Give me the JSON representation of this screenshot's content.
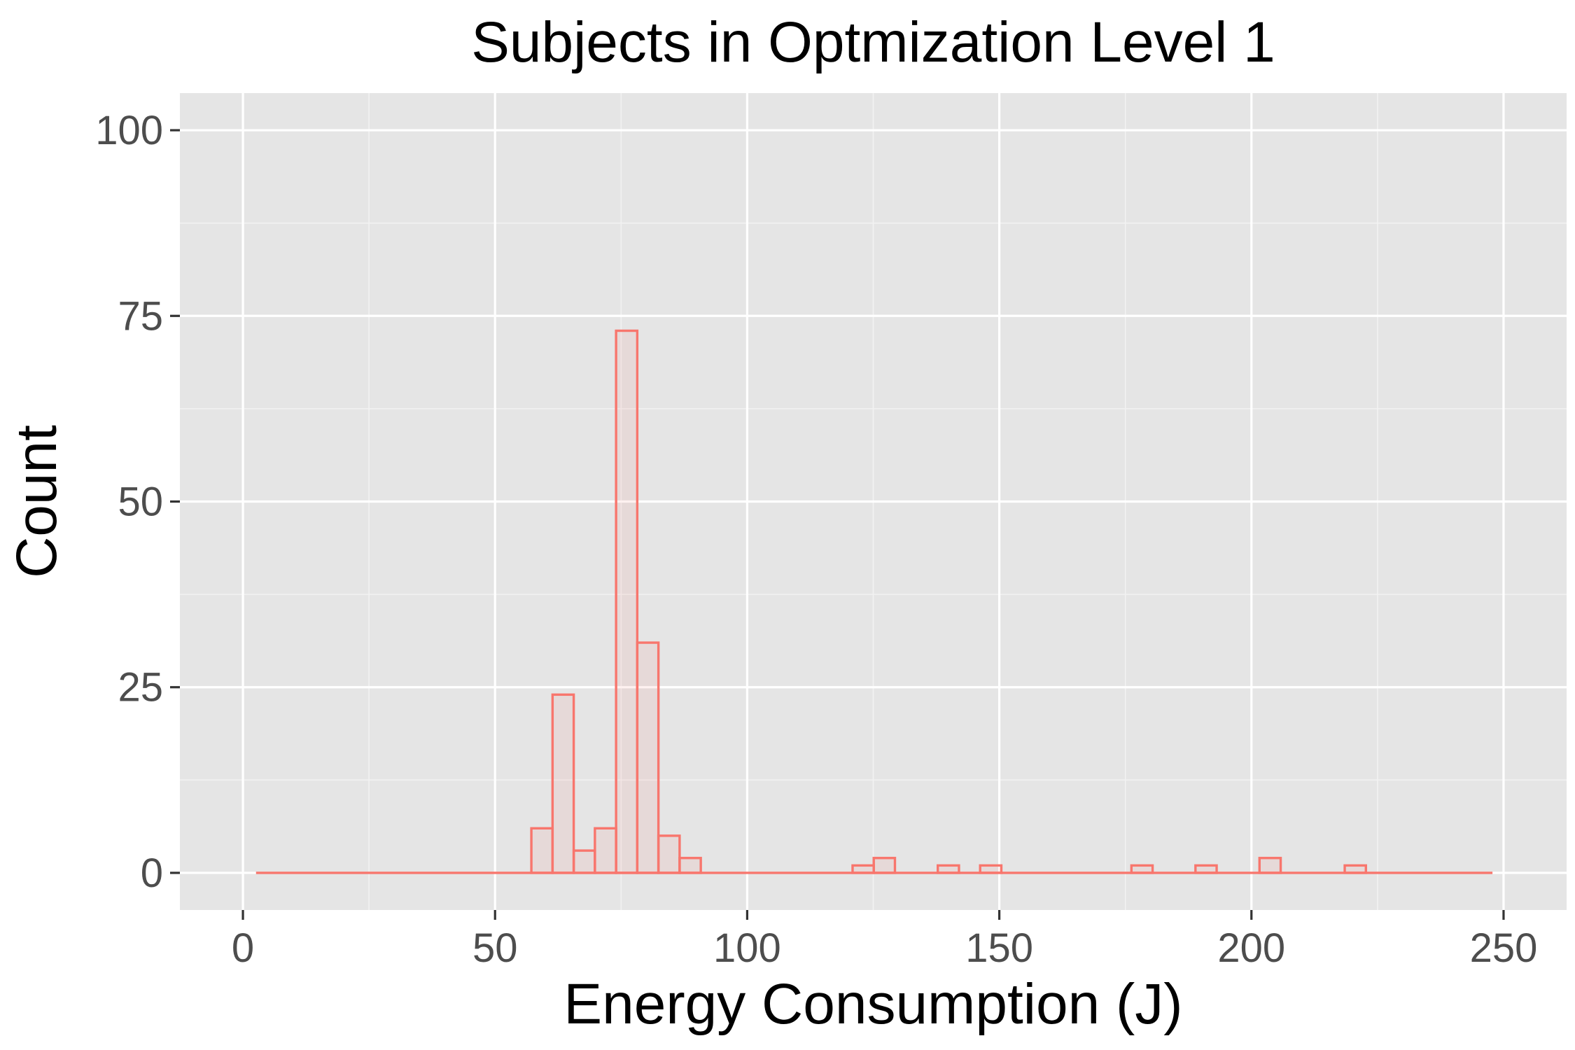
{
  "chart_data": {
    "type": "bar",
    "title": "Subjects in Optmization Level 1",
    "xlabel": "Energy Consumption (J)",
    "ylabel": "Count",
    "xlim": [
      -12.5,
      262.5
    ],
    "ylim": [
      -5,
      105
    ],
    "x_ticks": [
      0,
      50,
      100,
      150,
      200,
      250
    ],
    "y_ticks": [
      0,
      25,
      50,
      75,
      100
    ],
    "x_tick_labels": [
      "0",
      "50",
      "100",
      "150",
      "200",
      "250"
    ],
    "y_tick_labels": [
      "0",
      "25",
      "50",
      "75",
      "100"
    ],
    "x_range": [
      2.6,
      247.8
    ],
    "bin_width": 4.2,
    "bins": [
      {
        "x0": 57.2,
        "x1": 61.4,
        "count": 6
      },
      {
        "x0": 61.4,
        "x1": 65.6,
        "count": 24
      },
      {
        "x0": 65.6,
        "x1": 69.8,
        "count": 3
      },
      {
        "x0": 69.8,
        "x1": 74.0,
        "count": 6
      },
      {
        "x0": 74.0,
        "x1": 78.2,
        "count": 73
      },
      {
        "x0": 78.2,
        "x1": 82.4,
        "count": 31
      },
      {
        "x0": 82.4,
        "x1": 86.6,
        "count": 5
      },
      {
        "x0": 86.6,
        "x1": 90.8,
        "count": 2
      },
      {
        "x0": 120.9,
        "x1": 125.1,
        "count": 1
      },
      {
        "x0": 125.1,
        "x1": 129.3,
        "count": 2
      },
      {
        "x0": 137.8,
        "x1": 142.0,
        "count": 1
      },
      {
        "x0": 146.2,
        "x1": 150.4,
        "count": 1
      },
      {
        "x0": 176.2,
        "x1": 180.4,
        "count": 1
      },
      {
        "x0": 188.9,
        "x1": 193.1,
        "count": 1
      },
      {
        "x0": 201.6,
        "x1": 205.8,
        "count": 2
      },
      {
        "x0": 218.5,
        "x1": 222.7,
        "count": 1
      }
    ],
    "grid": true,
    "legend": "none",
    "colors": {
      "panel_background": "#e5e5e5",
      "grid_major": "#ffffff",
      "grid_minor": "#f2f2f2",
      "bar_fill": "#f8766d",
      "bar_outline": "#f8766d",
      "tick_text": "#4d4d4d",
      "tick_mark": "#333333"
    }
  }
}
